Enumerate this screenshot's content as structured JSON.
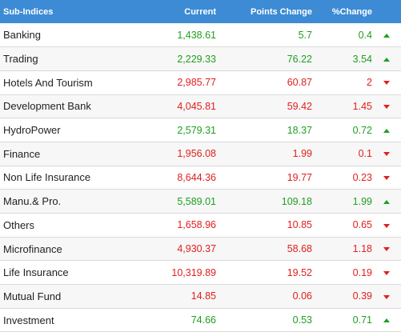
{
  "header": {
    "name": "Sub-Indices",
    "current": "Current",
    "points_change": "Points Change",
    "pct_change": "%Change"
  },
  "colors": {
    "header_bg": "#3d8bd4",
    "up": "#1f9e1f",
    "down": "#e0201e"
  },
  "rows": [
    {
      "name": "Banking",
      "current": "1,438.61",
      "points": "5.7",
      "pct": "0.4",
      "dir": "up"
    },
    {
      "name": "Trading",
      "current": "2,229.33",
      "points": "76.22",
      "pct": "3.54",
      "dir": "up"
    },
    {
      "name": "Hotels And Tourism",
      "current": "2,985.77",
      "points": "60.87",
      "pct": "2",
      "dir": "down"
    },
    {
      "name": "Development Bank",
      "current": "4,045.81",
      "points": "59.42",
      "pct": "1.45",
      "dir": "down"
    },
    {
      "name": "HydroPower",
      "current": "2,579.31",
      "points": "18.37",
      "pct": "0.72",
      "dir": "up"
    },
    {
      "name": "Finance",
      "current": "1,956.08",
      "points": "1.99",
      "pct": "0.1",
      "dir": "down"
    },
    {
      "name": "Non Life Insurance",
      "current": "8,644.36",
      "points": "19.77",
      "pct": "0.23",
      "dir": "down"
    },
    {
      "name": "Manu.& Pro.",
      "current": "5,589.01",
      "points": "109.18",
      "pct": "1.99",
      "dir": "up"
    },
    {
      "name": "Others",
      "current": "1,658.96",
      "points": "10.85",
      "pct": "0.65",
      "dir": "down"
    },
    {
      "name": "Microfinance",
      "current": "4,930.37",
      "points": "58.68",
      "pct": "1.18",
      "dir": "down"
    },
    {
      "name": "Life Insurance",
      "current": "10,319.89",
      "points": "19.52",
      "pct": "0.19",
      "dir": "down"
    },
    {
      "name": "Mutual Fund",
      "current": "14.85",
      "points": "0.06",
      "pct": "0.39",
      "dir": "down"
    },
    {
      "name": "Investment",
      "current": "74.66",
      "points": "0.53",
      "pct": "0.71",
      "dir": "up"
    }
  ]
}
